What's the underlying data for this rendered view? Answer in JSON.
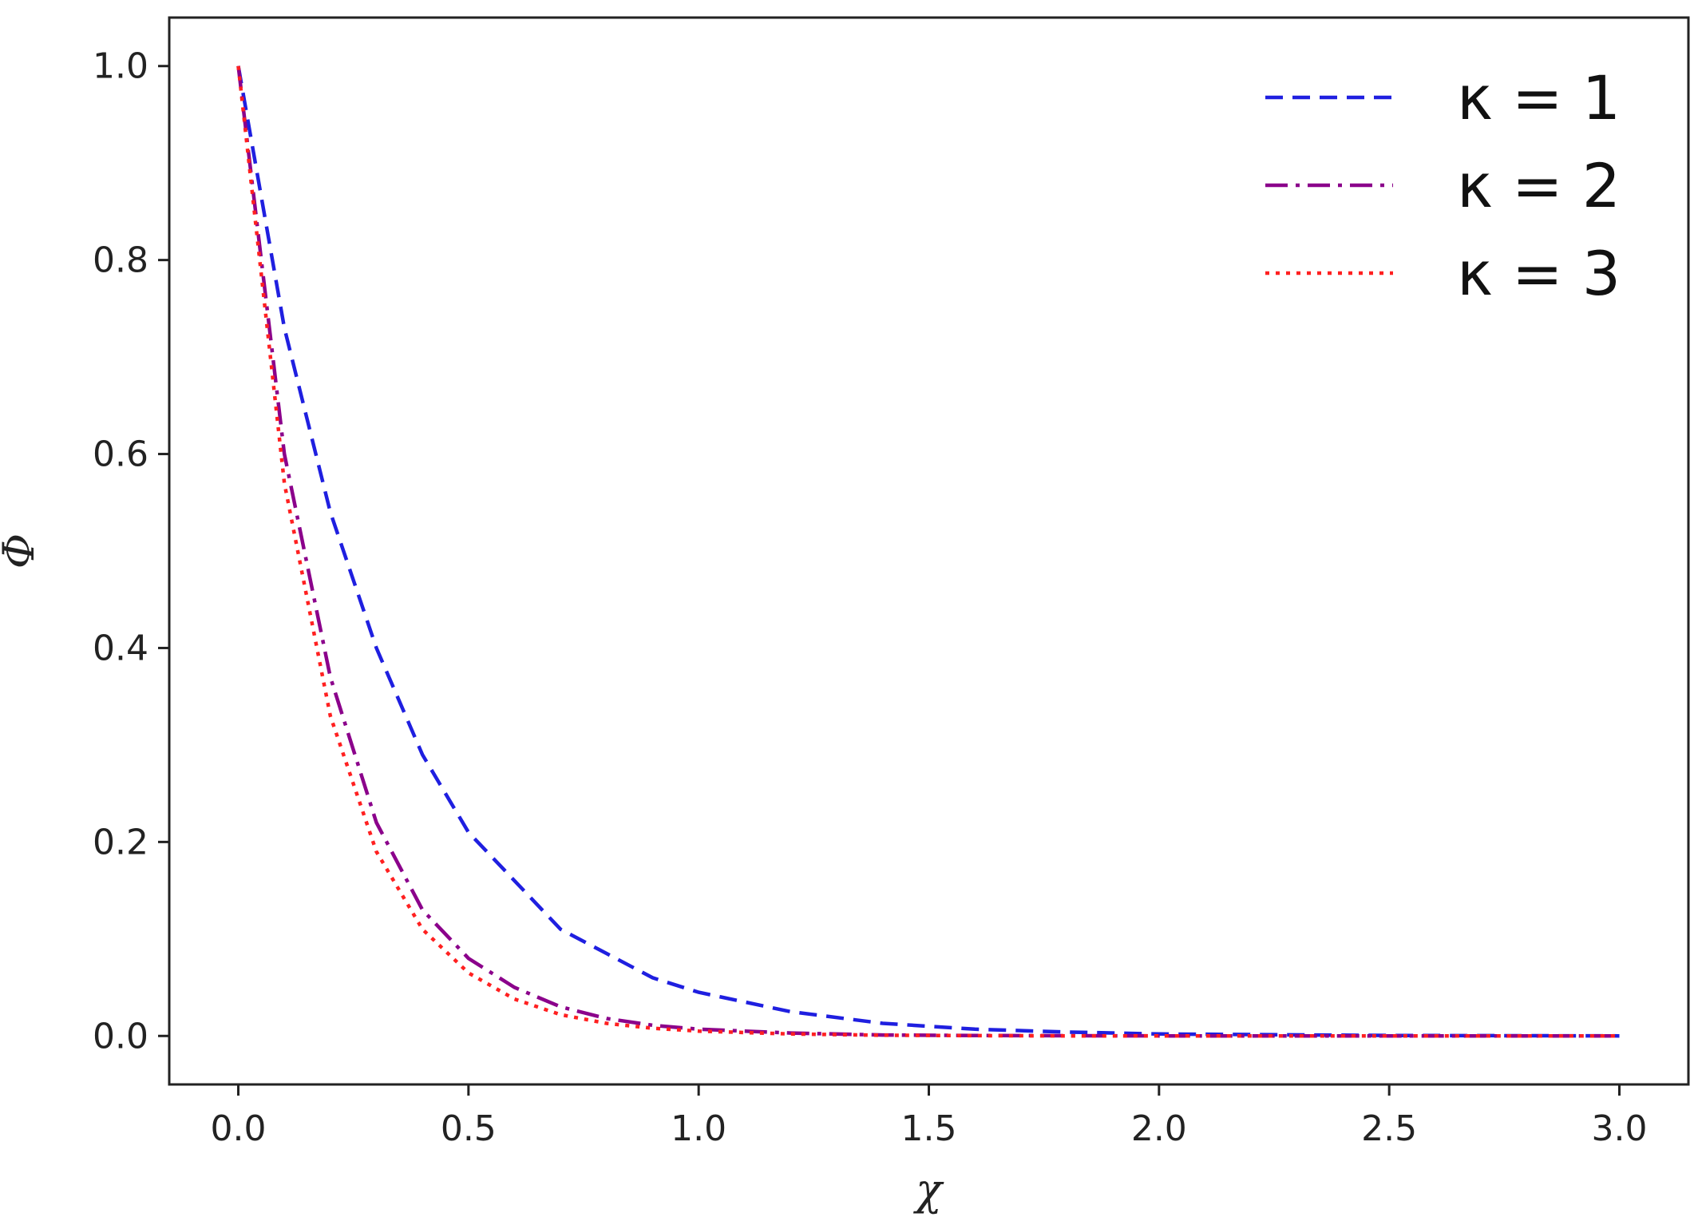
{
  "chart_data": {
    "type": "line",
    "title": "",
    "xlabel": "χ",
    "ylabel": "Φ",
    "xlim": [
      -0.15,
      3.15
    ],
    "ylim": [
      -0.05,
      1.05
    ],
    "grid": false,
    "legend_position": "top-right",
    "x_ticks": [
      0.0,
      0.5,
      1.0,
      1.5,
      2.0,
      2.5,
      3.0
    ],
    "x_tick_labels": [
      "0.0",
      "0.5",
      "1.0",
      "1.5",
      "2.0",
      "2.5",
      "3.0"
    ],
    "y_ticks": [
      0.0,
      0.2,
      0.4,
      0.6,
      0.8,
      1.0
    ],
    "y_tick_labels": [
      "0.0",
      "0.2",
      "0.4",
      "0.6",
      "0.8",
      "1.0"
    ],
    "series": [
      {
        "name": "κ = 1",
        "color": "#1f1fe0",
        "style": "dashed",
        "x": [
          0.0,
          0.1,
          0.2,
          0.3,
          0.4,
          0.5,
          0.6,
          0.7,
          0.8,
          0.9,
          1.0,
          1.2,
          1.4,
          1.6,
          1.8,
          2.0,
          2.5,
          3.0
        ],
        "y": [
          1.0,
          0.73,
          0.54,
          0.4,
          0.29,
          0.21,
          0.16,
          0.11,
          0.085,
          0.06,
          0.045,
          0.025,
          0.013,
          0.007,
          0.004,
          0.002,
          0.0005,
          0.0001
        ]
      },
      {
        "name": "κ = 2",
        "color": "#8b008b",
        "style": "dashdot",
        "x": [
          0.0,
          0.1,
          0.2,
          0.3,
          0.4,
          0.5,
          0.6,
          0.7,
          0.8,
          0.9,
          1.0,
          1.2,
          1.4,
          1.6,
          1.8,
          2.0,
          2.5,
          3.0
        ],
        "y": [
          1.0,
          0.6,
          0.37,
          0.22,
          0.13,
          0.08,
          0.05,
          0.03,
          0.018,
          0.011,
          0.007,
          0.003,
          0.001,
          0.0005,
          0.0002,
          0.0001,
          0.0,
          0.0
        ]
      },
      {
        "name": "κ = 3",
        "color": "#ff2020",
        "style": "dotted",
        "x": [
          0.0,
          0.1,
          0.2,
          0.3,
          0.4,
          0.5,
          0.6,
          0.7,
          0.8,
          0.9,
          1.0,
          1.2,
          1.4,
          1.6,
          1.8,
          2.0,
          2.5,
          3.0
        ],
        "y": [
          1.0,
          0.57,
          0.33,
          0.19,
          0.11,
          0.065,
          0.038,
          0.022,
          0.013,
          0.008,
          0.005,
          0.002,
          0.0007,
          0.0003,
          0.0001,
          0.0,
          0.0,
          0.0
        ]
      }
    ]
  }
}
